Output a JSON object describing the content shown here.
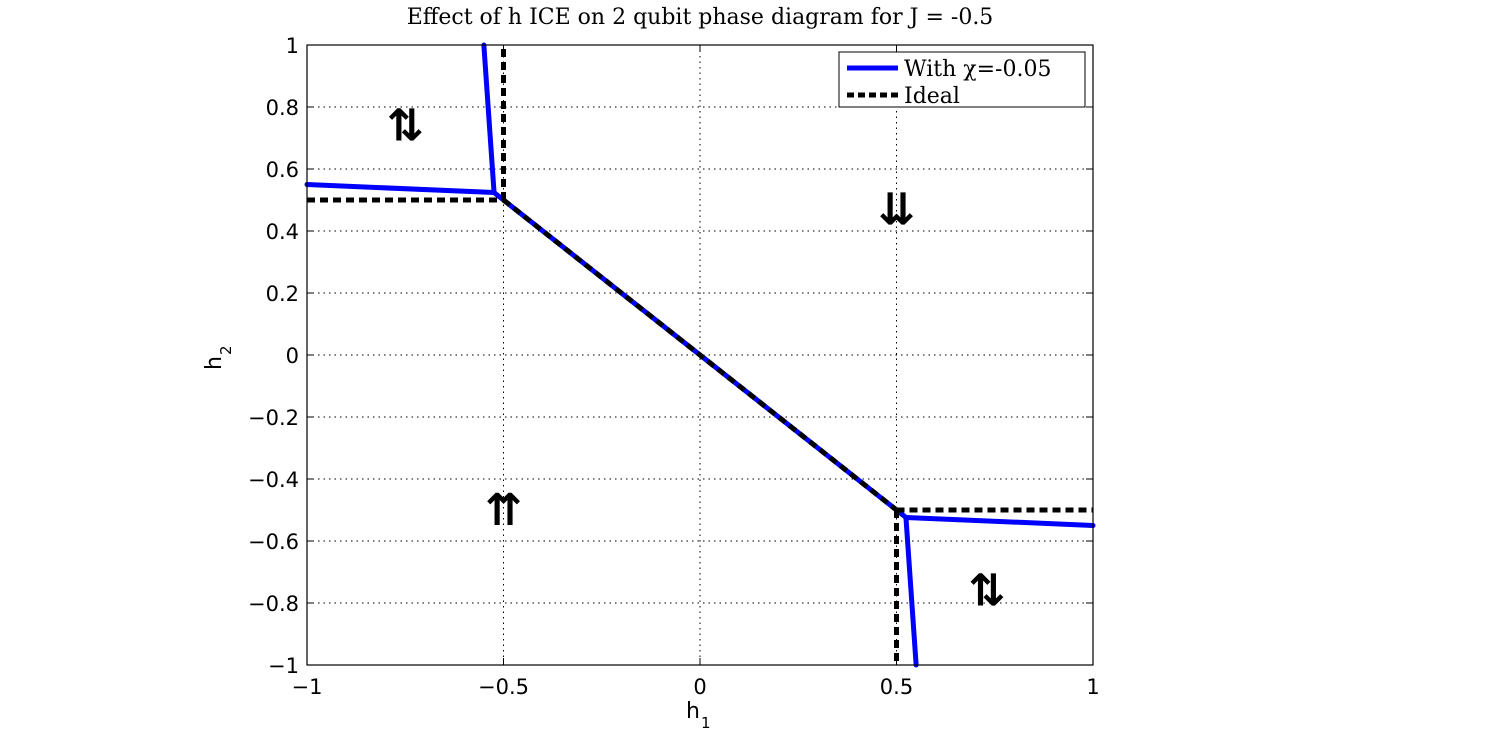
{
  "chart_data": {
    "type": "line",
    "title": "Effect of h ICE on 2 qubit phase diagram for J = -0.5",
    "xlabel": "h",
    "xlabel_sub": "1",
    "ylabel": "h",
    "ylabel_sub": "2",
    "xlim": [
      -1,
      1
    ],
    "ylim": [
      -1,
      1
    ],
    "x_ticks": [
      -1,
      -0.5,
      0,
      0.5,
      1
    ],
    "x_tick_labels": [
      "−1",
      "−0.5",
      "0",
      "0.5",
      "1"
    ],
    "y_ticks": [
      1,
      0.8,
      0.6,
      0.4,
      0.2,
      0,
      -0.2,
      -0.4,
      -0.6,
      -0.8,
      -1
    ],
    "y_tick_labels": [
      "1",
      "0.8",
      "0.6",
      "0.4",
      "0.2",
      "0",
      "−0.2",
      "−0.4",
      "−0.6",
      "−0.8",
      "−1"
    ],
    "grid": true,
    "legend_position": "top-right",
    "series": [
      {
        "name": "With χ=-0.05",
        "color": "#0000ff",
        "style": "solid",
        "segments": [
          [
            [
              -1,
              0.55
            ],
            [
              -0.524,
              0.524
            ]
          ],
          [
            [
              -0.524,
              0.524
            ],
            [
              -0.55,
              1
            ]
          ],
          [
            [
              -0.524,
              0.524
            ],
            [
              0.524,
              -0.524
            ]
          ],
          [
            [
              0.524,
              -0.524
            ],
            [
              1,
              -0.55
            ]
          ],
          [
            [
              0.524,
              -0.524
            ],
            [
              0.55,
              -1
            ]
          ]
        ]
      },
      {
        "name": "Ideal",
        "color": "#000000",
        "style": "dashed",
        "segments": [
          [
            [
              -1,
              0.5
            ],
            [
              -0.5,
              0.5
            ]
          ],
          [
            [
              -0.5,
              0.5
            ],
            [
              -0.5,
              1
            ]
          ],
          [
            [
              -0.5,
              0.5
            ],
            [
              0.5,
              -0.5
            ]
          ],
          [
            [
              0.5,
              -0.5
            ],
            [
              1,
              -0.5
            ]
          ],
          [
            [
              0.5,
              -0.5
            ],
            [
              0.5,
              -1
            ]
          ]
        ]
      }
    ],
    "annotations": [
      {
        "text": "⇅",
        "x": -0.75,
        "y": 0.74
      },
      {
        "text": "⇊",
        "x": 0.5,
        "y": 0.47
      },
      {
        "text": "⇈",
        "x": -0.5,
        "y": -0.5
      },
      {
        "text": "⇅",
        "x": 0.73,
        "y": -0.76
      }
    ]
  }
}
